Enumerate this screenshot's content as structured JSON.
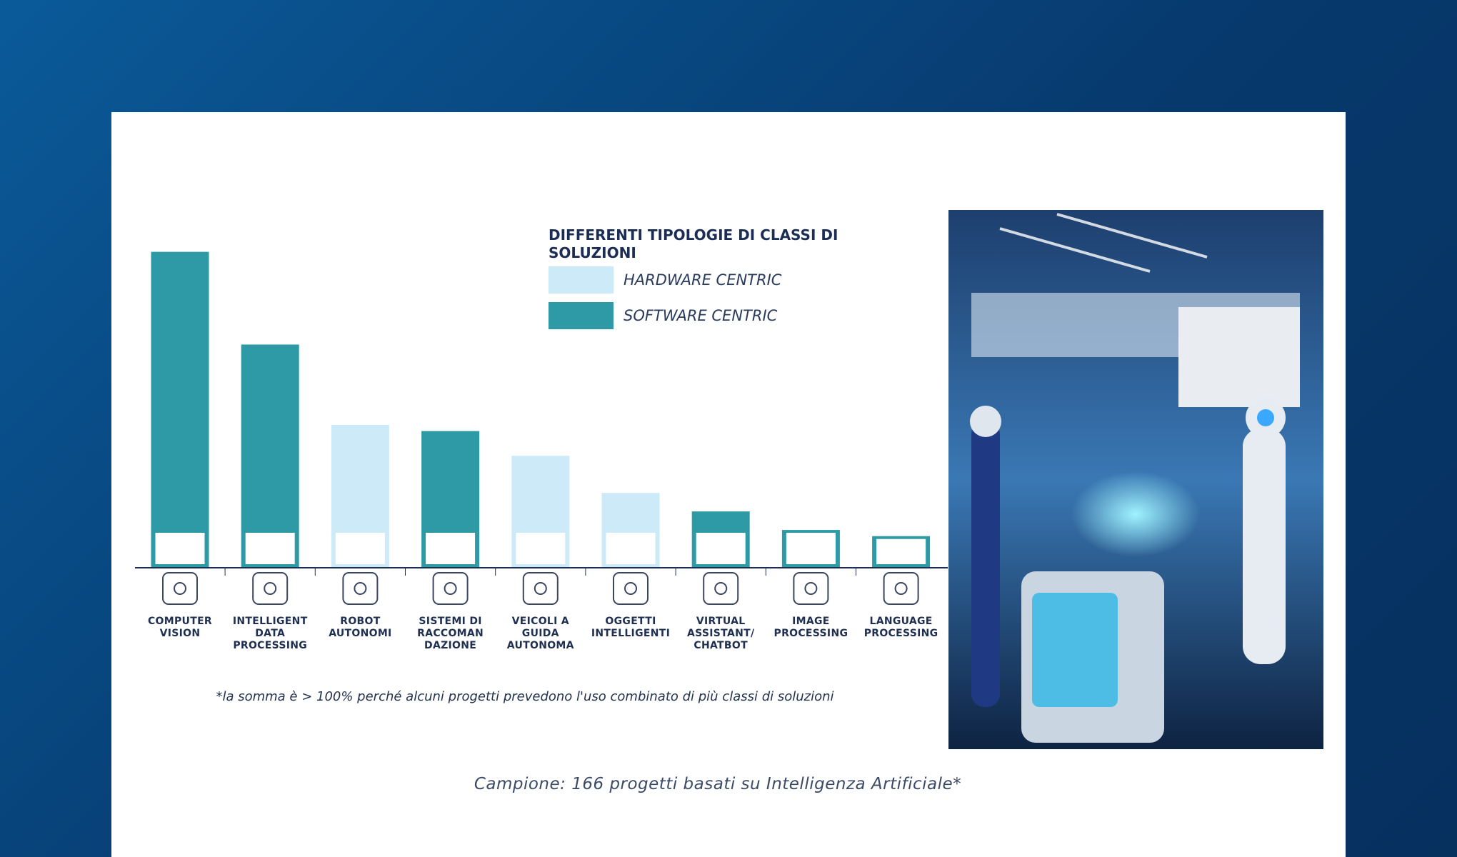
{
  "chart_data": {
    "type": "bar",
    "legend_title": "DIFFERENTI TIPOLOGIE DI CLASSI DI SOLUZIONI",
    "categories": [
      "COMPUTER\nVISION",
      "INTELLIGENT\nDATA\nPROCESSING",
      "ROBOT\nAUTONOMI",
      "SISTEMI DI\nRACCOMAN\nDAZIONE",
      "VEICOLI A\nGUIDA\nAUTONOMA",
      "OGGETTI\nINTELLIGENTI",
      "VIRTUAL\nASSISTANT/\nCHATBOT",
      "IMAGE\nPROCESSING",
      "LANGUAGE\nPROCESSING"
    ],
    "series": [
      {
        "name": "HARDWARE CENTRIC",
        "color": "#cdeaf8",
        "values": [
          null,
          null,
          23,
          null,
          18,
          12,
          null,
          null,
          null
        ]
      },
      {
        "name": "SOFTWARE CENTRIC",
        "color": "#2e9aa6",
        "values": [
          51,
          36,
          null,
          22,
          null,
          null,
          9,
          6,
          5
        ]
      }
    ],
    "ylim": [
      0,
      55
    ],
    "footnote": "*la somma è > 100% perché alcuni progetti prevedono l'uso combinato di più classi di soluzioni",
    "caption": "Campione: 166 progetti basati su Intelligenza Artificiale*"
  }
}
